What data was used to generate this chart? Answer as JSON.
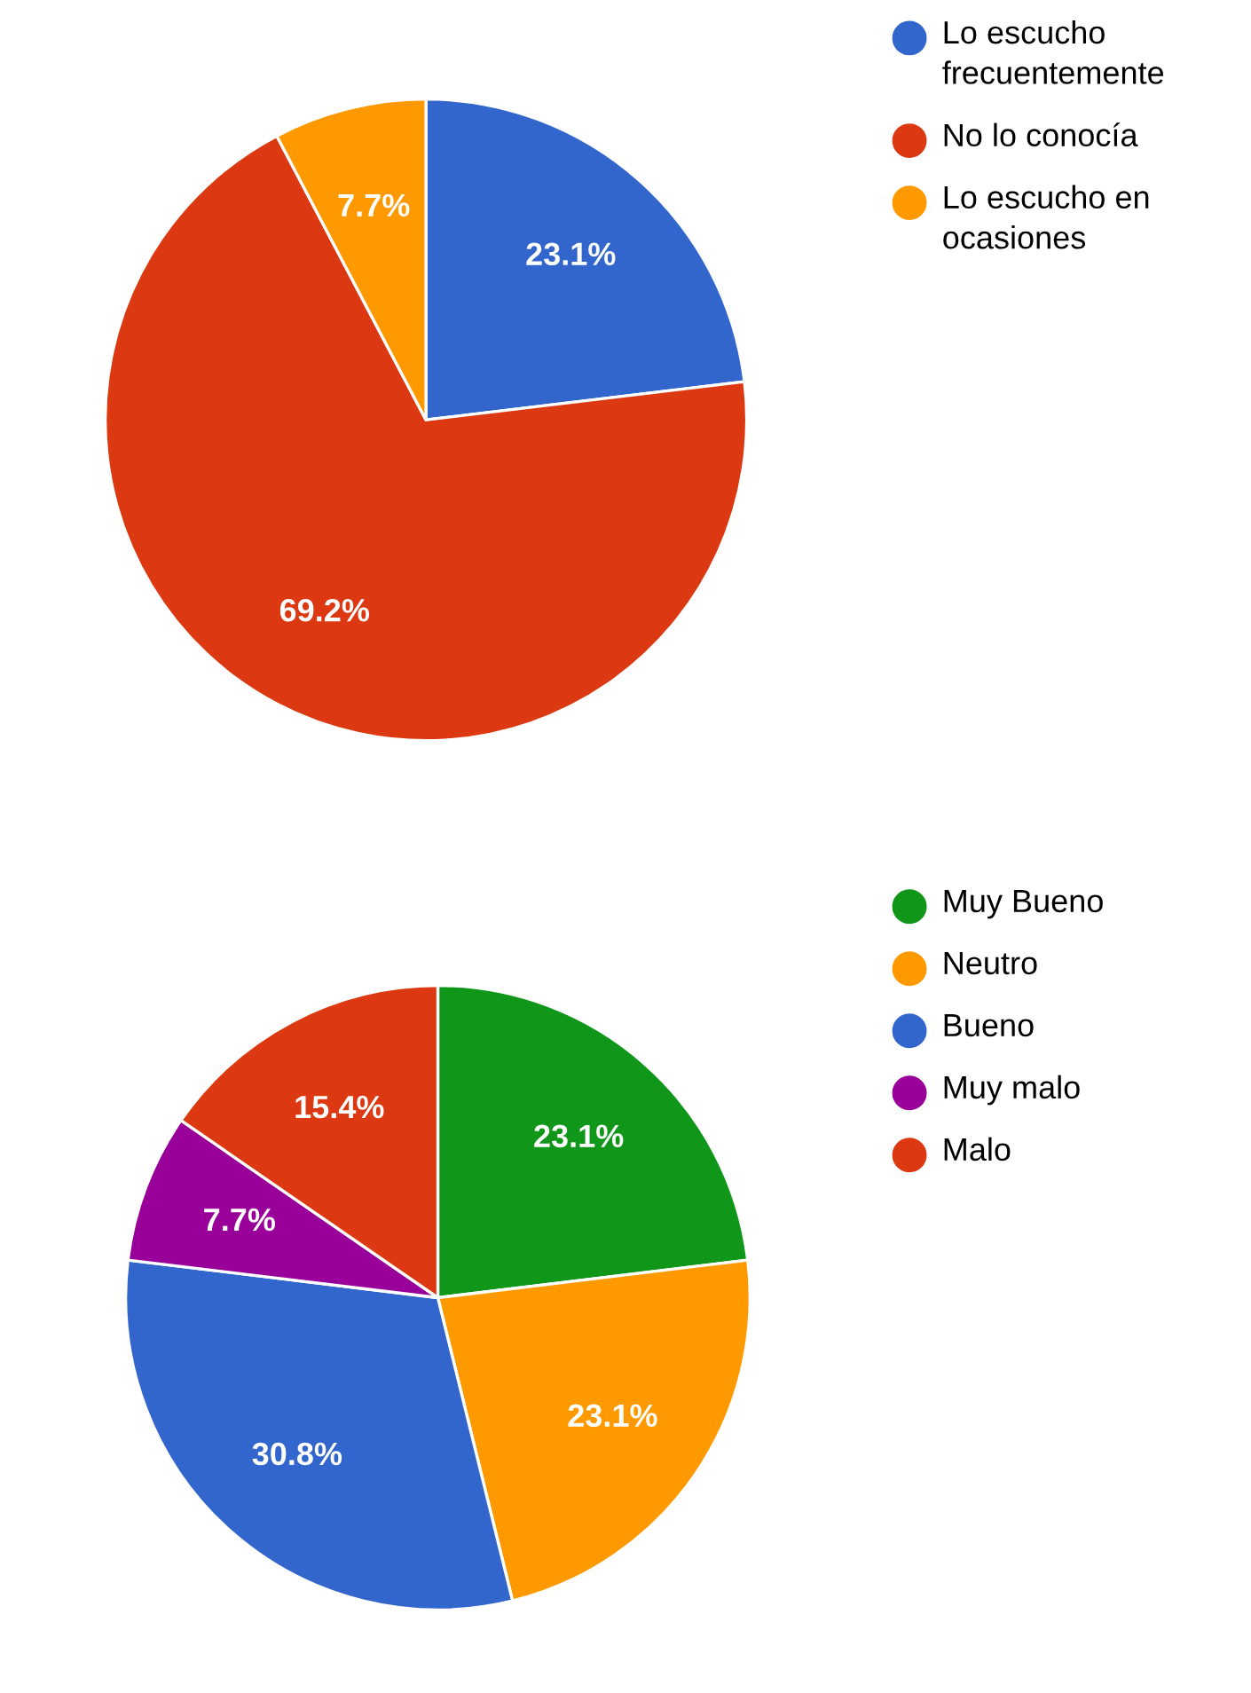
{
  "chart_data": [
    {
      "type": "pie",
      "categories": [
        "Lo escucho frecuentemente",
        "No lo conocía",
        "Lo escucho en ocasiones"
      ],
      "values": [
        23.1,
        69.2,
        7.7
      ],
      "colors": [
        "#3366cc",
        "#dc3912",
        "#ff9900"
      ],
      "value_labels": [
        "23.1%",
        "69.2%",
        "7.7%"
      ],
      "legend": "top right"
    },
    {
      "type": "pie",
      "categories": [
        "Muy Bueno",
        "Neutro",
        "Bueno",
        "Muy malo",
        "Malo"
      ],
      "values": [
        23.1,
        23.1,
        30.8,
        7.7,
        15.4
      ],
      "colors": [
        "#109618",
        "#ff9900",
        "#3366cc",
        "#990099",
        "#dc3912"
      ],
      "value_labels": [
        "23.1%",
        "23.1%",
        "30.8%",
        "7.7%",
        "15.4%"
      ],
      "legend": "top right"
    }
  ]
}
